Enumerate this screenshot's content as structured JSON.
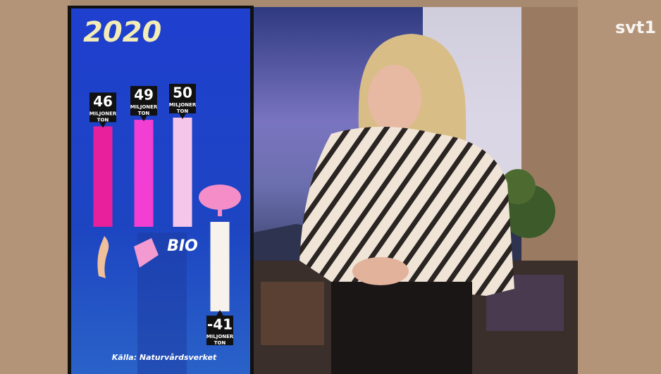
{
  "chart_data": {
    "type": "bar",
    "title": "2020",
    "categories": [
      null,
      null,
      "BIO",
      null
    ],
    "values": [
      46,
      49,
      50,
      -41
    ],
    "unit": "MILJONER TON",
    "colors": [
      "#e8209c",
      "#f23ed2",
      "#f6c6ea",
      "#f7f2ec"
    ],
    "source": "Källa: Naturvårdsverket"
  },
  "logo": "svt1"
}
